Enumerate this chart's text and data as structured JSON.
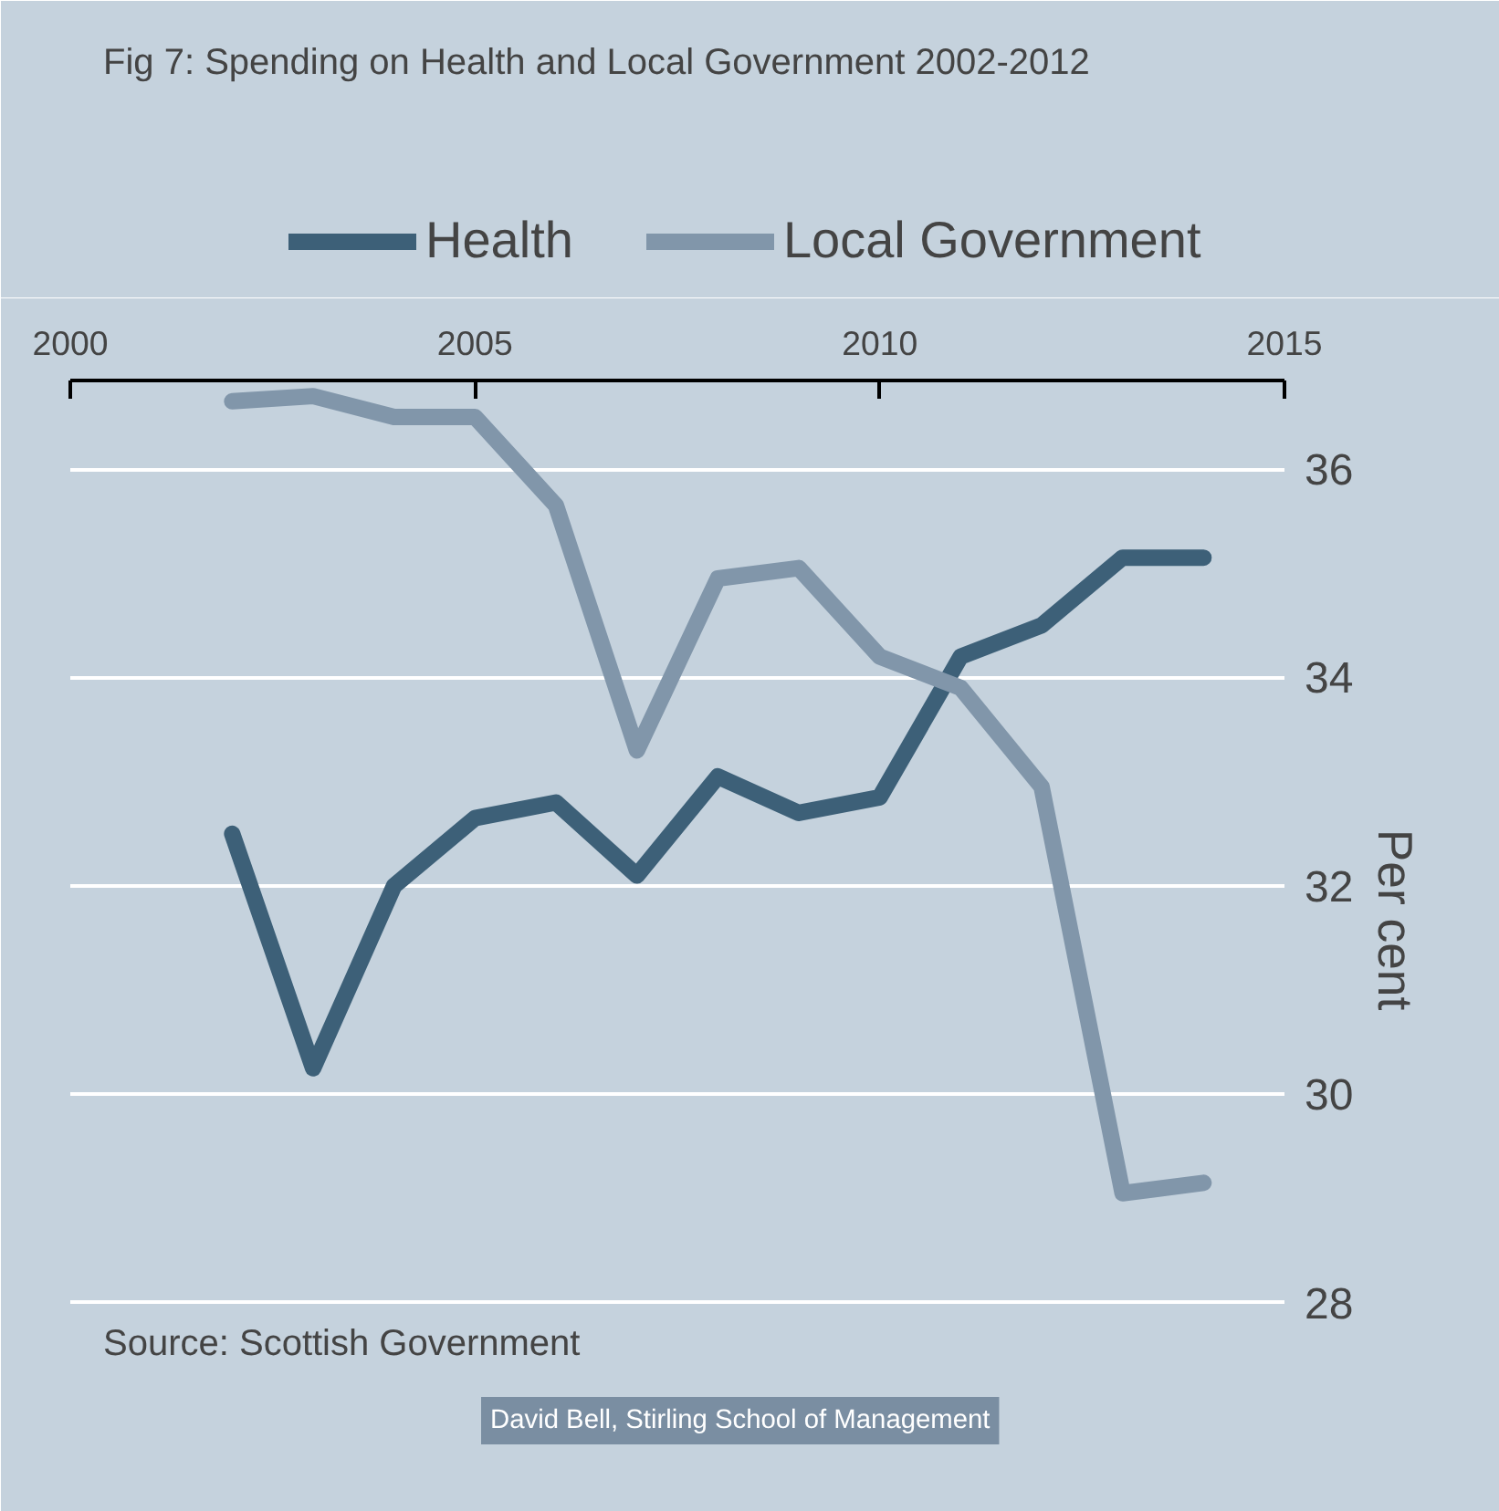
{
  "chart_data": {
    "type": "line",
    "title": "Fig 7: Spending on Health and Local Government 2002-2012",
    "x": [
      2002,
      2003,
      2004,
      2005,
      2006,
      2007,
      2008,
      2009,
      2010,
      2011,
      2012,
      2013,
      2014
    ],
    "series": [
      {
        "name": "Health",
        "color": "#3d6078",
        "values": [
          32.5,
          30.25,
          32.0,
          32.65,
          32.8,
          32.1,
          33.05,
          32.7,
          32.85,
          34.2,
          34.5,
          35.15,
          35.15
        ]
      },
      {
        "name": "Local Government",
        "color": "#8196aa",
        "values": [
          36.65,
          36.7,
          36.5,
          36.5,
          35.65,
          33.3,
          34.95,
          35.05,
          34.2,
          33.9,
          32.95,
          29.05,
          29.15
        ]
      }
    ],
    "xlim": [
      2000,
      2015
    ],
    "xticks": [
      2000,
      2005,
      2010,
      2015
    ],
    "ylim": [
      26.5,
      36.85
    ],
    "yticks": [
      28,
      30,
      32,
      34,
      36
    ],
    "ylabel": "Per cent",
    "grid": "y",
    "legend": "top",
    "line_style": "solid",
    "annotations": [
      "Source: Scottish Government",
      "David Bell, Stirling School of Management"
    ]
  }
}
